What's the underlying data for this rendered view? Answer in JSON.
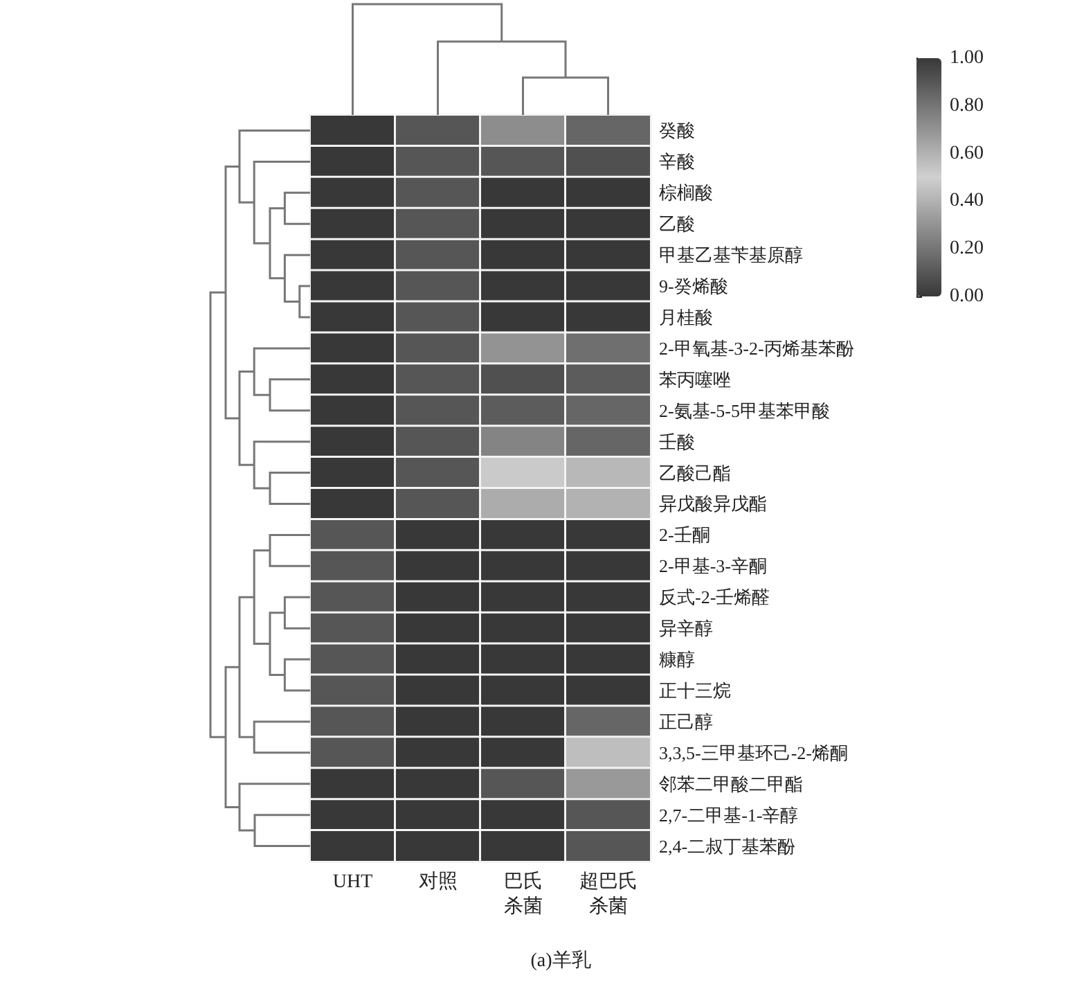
{
  "chart_data": {
    "type": "heatmap",
    "title": "(a)羊乳",
    "categories": [
      "UHT",
      "对照",
      "巴氏杀菌",
      "超巴氏杀菌"
    ],
    "y_categories": [
      "癸酸",
      "辛酸",
      "棕榈酸",
      "乙酸",
      "甲基乙基苄基原醇",
      "9-癸烯酸",
      "月桂酸",
      "2-甲氧基-3-2-丙烯基苯酚",
      "苯丙噻唑",
      "2-氨基-5-5甲基苯甲酸",
      "壬酸",
      "乙酸己酯",
      "异戊酸异戊酯",
      "2-壬酮",
      "2-甲基-3-辛酮",
      "反式-2-壬烯醛",
      "异辛醇",
      "糠醇",
      "正十三烷",
      "正己醇",
      "3,3,5-三甲基环己-2-烯酮",
      "邻苯二甲酸二甲酯",
      "2,7-二甲基-1-辛醇",
      "2,4-二叔丁基苯酚"
    ],
    "cells": [
      [
        0,
        0.1,
        0.28,
        0.15
      ],
      [
        0,
        0.1,
        0.1,
        0.08
      ],
      [
        0,
        0.1,
        0,
        0
      ],
      [
        0,
        0.1,
        0,
        0
      ],
      [
        0,
        0.1,
        0,
        0
      ],
      [
        0,
        0.1,
        0,
        0
      ],
      [
        0,
        0.1,
        0,
        0
      ],
      [
        0,
        0.1,
        0.3,
        0.18
      ],
      [
        0,
        0.1,
        0.08,
        0.12
      ],
      [
        0,
        0.1,
        0.12,
        0.15
      ],
      [
        0,
        0.1,
        0.25,
        0.15
      ],
      [
        0,
        0.1,
        0.48,
        0.42
      ],
      [
        0,
        0.1,
        0.38,
        0.4
      ],
      [
        0.1,
        0,
        0,
        0
      ],
      [
        0.1,
        0,
        0,
        0
      ],
      [
        0.1,
        0,
        0,
        0
      ],
      [
        0.1,
        0,
        0,
        0
      ],
      [
        0.1,
        0,
        0,
        0
      ],
      [
        0.1,
        0,
        0,
        0
      ],
      [
        0.1,
        0,
        0,
        0.15
      ],
      [
        0.1,
        0,
        0,
        0.44
      ],
      [
        0,
        0,
        0.1,
        0.32
      ],
      [
        0,
        0,
        0,
        0.1
      ],
      [
        0,
        0,
        0,
        0.1
      ]
    ],
    "clim": [
      0,
      1
    ],
    "cticks": [
      {
        "value": 0,
        "label": "0.00"
      },
      {
        "value": 0.2,
        "label": "0.20"
      },
      {
        "value": 0.4,
        "label": "0.40"
      },
      {
        "value": 0.6,
        "label": "0.60"
      },
      {
        "value": 0.8,
        "label": "0.80"
      },
      {
        "value": 1,
        "label": "1.00"
      }
    ]
  }
}
